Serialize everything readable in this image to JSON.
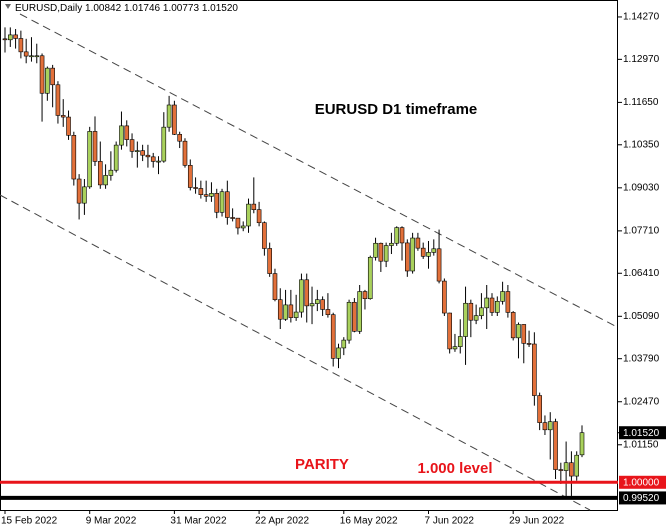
{
  "chart_data": {
    "type": "candlestick",
    "header": {
      "symbol": "EURUSD,Daily",
      "values": [
        "1.00842",
        "1.01746",
        "1.00773",
        "1.01520"
      ]
    },
    "title": "EURUSD D1 timeframe",
    "annotations": [
      "PARITY",
      "1.000 level"
    ],
    "bull_color": "#a9d15c",
    "bear_color": "#e2703a",
    "categories": [
      "15 Feb 2022",
      null,
      null,
      null,
      null,
      null,
      null,
      null,
      null,
      null,
      null,
      null,
      null,
      null,
      null,
      null,
      "9 Mar 2022",
      null,
      null,
      null,
      null,
      null,
      null,
      null,
      null,
      null,
      null,
      null,
      null,
      null,
      null,
      null,
      "31 Mar 2022",
      null,
      null,
      null,
      null,
      null,
      null,
      null,
      null,
      null,
      null,
      null,
      null,
      null,
      null,
      null,
      "22 Apr 2022",
      null,
      null,
      null,
      null,
      null,
      null,
      null,
      null,
      null,
      null,
      null,
      null,
      null,
      null,
      null,
      "16 May 2022",
      null,
      null,
      null,
      null,
      null,
      null,
      null,
      null,
      null,
      null,
      null,
      null,
      null,
      null,
      null,
      "7 Jun 2022",
      null,
      null,
      null,
      null,
      null,
      null,
      null,
      null,
      null,
      null,
      null,
      null,
      null,
      null,
      null,
      "29 Jun 2022",
      null,
      null,
      null,
      null,
      null,
      null,
      null,
      null,
      null,
      null,
      null,
      null,
      null
    ],
    "open": [
      1.136,
      1.1357,
      1.1372,
      1.1361,
      1.132,
      1.1307,
      1.1308,
      1.1308,
      1.1193,
      1.127,
      1.1219,
      1.1125,
      1.112,
      1.1064,
      1.093,
      1.0856,
      1.0906,
      1.1076,
      1.0984,
      1.0912,
      1.0941,
      1.0957,
      1.1034,
      1.1093,
      1.1051,
      1.1015,
      1.1017,
      1.1003,
      1.0998,
      1.0984,
      1.0985,
      1.1089,
      1.1157,
      1.1067,
      1.1046,
      1.0972,
      1.0904,
      1.0901,
      1.0882,
      1.0877,
      1.0886,
      1.0828,
      1.0891,
      1.0812,
      1.081,
      1.078,
      1.0786,
      1.0853,
      1.0836,
      1.0796,
      1.0717,
      1.064,
      1.056,
      1.05,
      1.0544,
      1.0505,
      1.0522,
      1.0621,
      1.0541,
      1.0548,
      1.056,
      1.053,
      1.0514,
      1.038,
      1.0412,
      1.0436,
      1.0552,
      1.0463,
      1.0585,
      1.0563,
      1.069,
      1.0733,
      1.0678,
      1.0726,
      1.0733,
      1.0781,
      1.0734,
      1.0648,
      1.0749,
      1.0718,
      1.0693,
      1.0705,
      1.0716,
      1.0617,
      1.0519,
      1.0409,
      1.0416,
      1.0447,
      1.0549,
      1.0497,
      1.0511,
      1.0535,
      1.0565,
      1.0521,
      1.0555,
      1.0585,
      1.0521,
      1.0443,
      1.0484,
      1.0426,
      1.0424,
      1.0266,
      1.0183,
      1.0161,
      1.0186,
      1.0039,
      1.0036,
      1.006,
      1.0019,
      1.00842
    ],
    "high": [
      1.1395,
      1.1395,
      1.139,
      1.1385,
      1.136,
      1.1365,
      1.1345,
      1.1315,
      1.1275,
      1.128,
      1.123,
      1.1175,
      1.114,
      1.1075,
      1.0945,
      1.093,
      1.109,
      1.1122,
      1.1045,
      1.0975,
      1.1015,
      1.1045,
      1.1137,
      1.111,
      1.107,
      1.1045,
      1.1035,
      1.1035,
      1.101,
      1.1,
      1.1135,
      1.1185,
      1.117,
      1.1075,
      1.1055,
      1.099,
      1.0935,
      1.0925,
      1.0925,
      1.092,
      1.09,
      1.09,
      1.0925,
      1.084,
      1.081,
      1.08,
      1.087,
      1.0935,
      1.086,
      1.08,
      1.0735,
      1.0655,
      1.0595,
      1.059,
      1.059,
      1.0575,
      1.064,
      1.064,
      1.06,
      1.059,
      1.057,
      1.058,
      1.052,
      1.0425,
      1.0445,
      1.056,
      1.0565,
      1.0605,
      1.059,
      1.0695,
      1.075,
      1.0735,
      1.0735,
      1.0765,
      1.0785,
      1.0785,
      1.0745,
      1.0765,
      1.0765,
      1.0735,
      1.074,
      1.0745,
      1.0775,
      1.0625,
      1.052,
      1.0455,
      1.05,
      1.06,
      1.056,
      1.0545,
      1.058,
      1.0605,
      1.058,
      1.057,
      1.0615,
      1.0605,
      1.0525,
      1.049,
      1.0485,
      1.0465,
      1.046,
      1.0275,
      1.0205,
      1.0215,
      1.0195,
      1.006,
      1.0125,
      1.0095,
      1.0095,
      1.01746
    ],
    "low": [
      1.1318,
      1.1335,
      1.133,
      1.13,
      1.1285,
      1.129,
      1.1285,
      1.1106,
      1.117,
      1.115,
      1.11,
      1.109,
      1.105,
      1.091,
      1.0806,
      1.082,
      1.09,
      1.097,
      1.09,
      1.09,
      1.0925,
      1.095,
      1.102,
      1.103,
      1.0995,
      1.0965,
      1.0985,
      1.0965,
      1.0965,
      1.0945,
      1.098,
      1.1075,
      1.1065,
      1.1025,
      1.0965,
      1.0895,
      1.0885,
      1.087,
      1.086,
      1.086,
      1.081,
      1.0815,
      1.079,
      1.08,
      1.076,
      1.077,
      1.0765,
      1.0825,
      1.0785,
      1.0695,
      1.063,
      1.0555,
      1.047,
      1.0495,
      1.049,
      1.0495,
      1.0505,
      1.049,
      1.0485,
      1.0525,
      1.051,
      1.0505,
      1.0355,
      1.035,
      1.039,
      1.0425,
      1.046,
      1.0455,
      1.053,
      1.056,
      1.068,
      1.0645,
      1.066,
      1.07,
      1.0725,
      1.068,
      1.063,
      1.064,
      1.071,
      1.0685,
      1.0655,
      1.0695,
      1.061,
      1.051,
      1.0395,
      1.04,
      1.0395,
      1.036,
      1.0445,
      1.0485,
      1.05,
      1.047,
      1.051,
      1.051,
      1.0545,
      1.0505,
      1.0435,
      1.038,
      1.0365,
      1.0415,
      1.0235,
      1.016,
      1.0145,
      1.007,
      1.001,
      0.9995,
      0.9952,
      0.9952,
      1.0005,
      1.00773
    ],
    "close": [
      1.1357,
      1.1372,
      1.1361,
      1.132,
      1.1307,
      1.1308,
      1.1308,
      1.1193,
      1.127,
      1.1219,
      1.1125,
      1.112,
      1.1064,
      1.093,
      1.0856,
      1.0906,
      1.1076,
      1.0984,
      1.0912,
      1.0941,
      1.0957,
      1.1034,
      1.1093,
      1.1051,
      1.1015,
      1.1017,
      1.1003,
      1.0998,
      1.0984,
      1.0985,
      1.1089,
      1.1157,
      1.1067,
      1.1046,
      1.0972,
      1.0904,
      1.0901,
      1.0882,
      1.0877,
      1.0886,
      1.0828,
      1.0891,
      1.0812,
      1.081,
      1.078,
      1.0786,
      1.0853,
      1.0836,
      1.0796,
      1.0717,
      1.064,
      1.056,
      1.05,
      1.0544,
      1.0505,
      1.0522,
      1.0621,
      1.0541,
      1.0548,
      1.056,
      1.053,
      1.0514,
      1.038,
      1.0412,
      1.0436,
      1.0552,
      1.0463,
      1.0585,
      1.0563,
      1.069,
      1.0733,
      1.0678,
      1.0726,
      1.0733,
      1.0781,
      1.0734,
      1.0648,
      1.0749,
      1.0718,
      1.0693,
      1.0705,
      1.0716,
      1.0617,
      1.0519,
      1.0409,
      1.0416,
      1.0447,
      1.0549,
      1.0497,
      1.0511,
      1.0535,
      1.0565,
      1.0521,
      1.0555,
      1.0585,
      1.0521,
      1.0443,
      1.0484,
      1.0426,
      1.0424,
      1.0266,
      1.0183,
      1.0161,
      1.0186,
      1.0039,
      1.0036,
      1.006,
      1.0019,
      1.0083,
      1.0152
    ],
    "ylim": [
      0.9915,
      1.1479
    ],
    "yticks": [
      {
        "value": 1.1427,
        "label": "1.14270"
      },
      {
        "value": 1.1297,
        "label": "1.12970"
      },
      {
        "value": 1.1165,
        "label": "1.11650"
      },
      {
        "value": 1.1035,
        "label": "1.10350"
      },
      {
        "value": 1.0903,
        "label": "1.09030"
      },
      {
        "value": 1.0771,
        "label": "1.07710"
      },
      {
        "value": 1.0641,
        "label": "1.06410"
      },
      {
        "value": 1.0509,
        "label": "1.05090"
      },
      {
        "value": 1.0379,
        "label": "1.03790"
      },
      {
        "value": 1.0247,
        "label": "1.02470"
      },
      {
        "value": 1.0115,
        "label": "1.01150"
      }
    ],
    "levels": [
      {
        "value": 1.0,
        "label": "1.00000",
        "color": "#e8141a"
      },
      {
        "value": 0.9952,
        "label": "0.99520",
        "color": "#000000"
      }
    ],
    "price_marker": {
      "value": 1.0152,
      "label": "1.01520"
    }
  }
}
